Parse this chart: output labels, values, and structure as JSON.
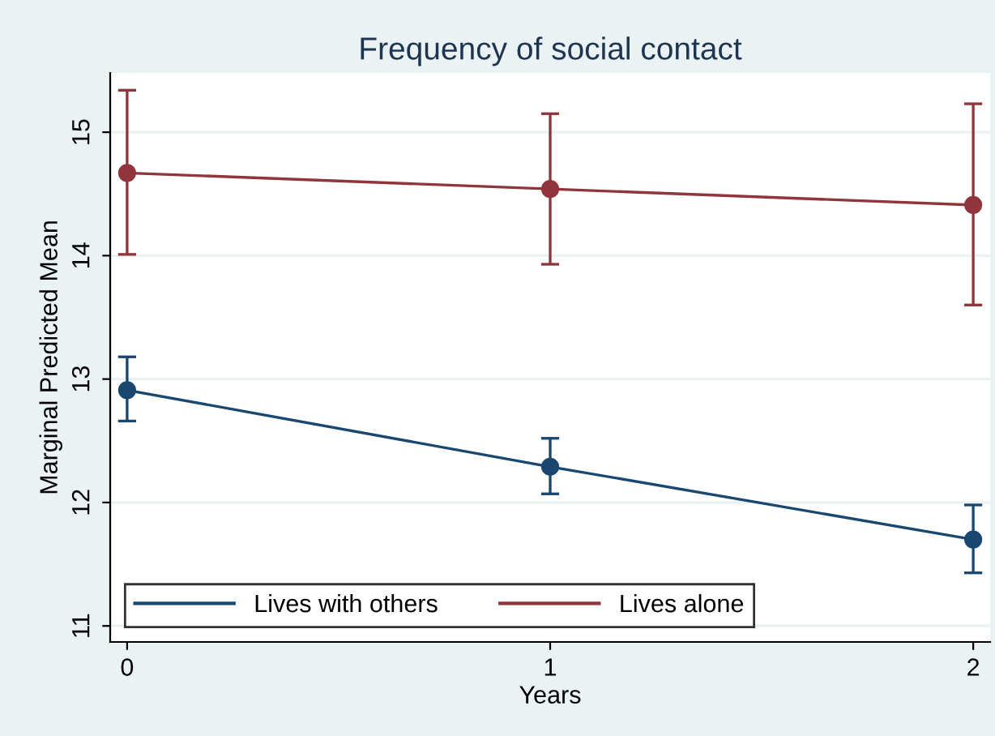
{
  "chart_data": {
    "type": "line",
    "title": "Frequency of social contact",
    "xlabel": "Years",
    "ylabel": "Marginal Predicted Mean",
    "x": [
      0,
      1,
      2
    ],
    "xlim": [
      -0.04,
      2.04
    ],
    "xticks": [
      0,
      1,
      2
    ],
    "ylim": [
      10.87,
      15.48
    ],
    "yticks": [
      11,
      12,
      13,
      14,
      15
    ],
    "grid": "y",
    "legend": "bottom",
    "marker": "circle",
    "line_style": "solid",
    "series": [
      {
        "name": "Lives with others",
        "color": "#1a476f",
        "values": [
          12.91,
          12.29,
          11.7
        ],
        "errors": [
          [
            12.66,
            13.18
          ],
          [
            12.07,
            12.52
          ],
          [
            11.43,
            11.98
          ]
        ]
      },
      {
        "name": "Lives alone",
        "color": "#90353b",
        "values": [
          14.67,
          14.54,
          14.41
        ],
        "errors": [
          [
            14.01,
            15.34
          ],
          [
            13.93,
            15.15
          ],
          [
            13.6,
            15.23
          ]
        ]
      }
    ]
  }
}
